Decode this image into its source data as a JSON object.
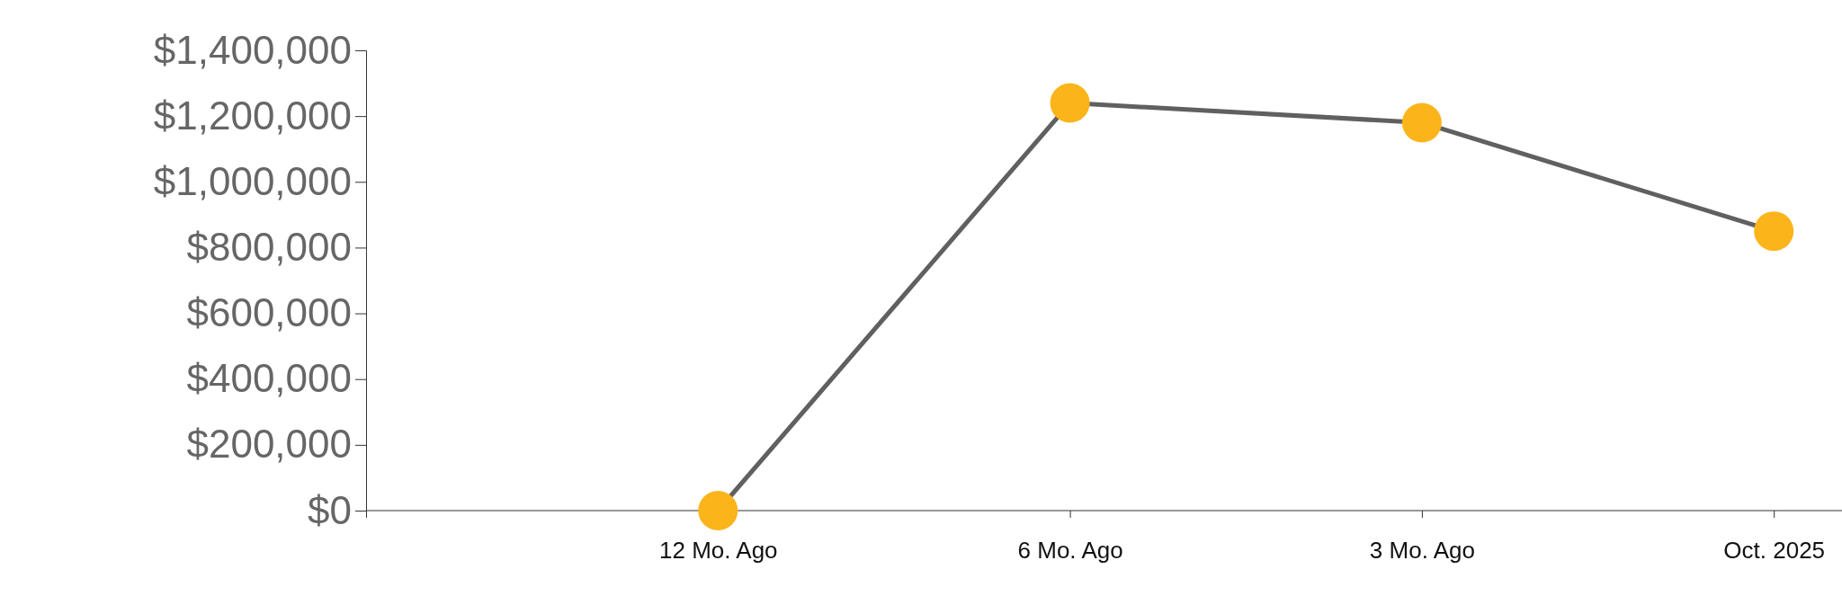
{
  "chart_data": {
    "type": "line",
    "categories": [
      null,
      "12 Mo. Ago",
      "6 Mo. Ago",
      "3 Mo. Ago",
      "Oct. 2025"
    ],
    "series": [
      {
        "color": "#606060",
        "colors": [
          null,
          "#fbb41a",
          "#fbb41a",
          "#fbb41a",
          "#fbb41a"
        ],
        "values": [
          null,
          0,
          1240000,
          1180000,
          850000
        ]
      }
    ],
    "marker": "circle",
    "line_style": "solid",
    "grid": false,
    "ylim": [
      0,
      1400000
    ],
    "yticks": [
      {
        "value": 0,
        "label": "$0"
      },
      {
        "value": 200000,
        "label": "$200,000"
      },
      {
        "value": 400000,
        "label": "$400,000"
      },
      {
        "value": 600000,
        "label": "$600,000"
      },
      {
        "value": 800000,
        "label": "$800,000"
      },
      {
        "value": 1000000,
        "label": "$1,000,000"
      },
      {
        "value": 1200000,
        "label": "$1,200,000"
      },
      {
        "value": 1400000,
        "label": "$1,400,000"
      }
    ]
  }
}
